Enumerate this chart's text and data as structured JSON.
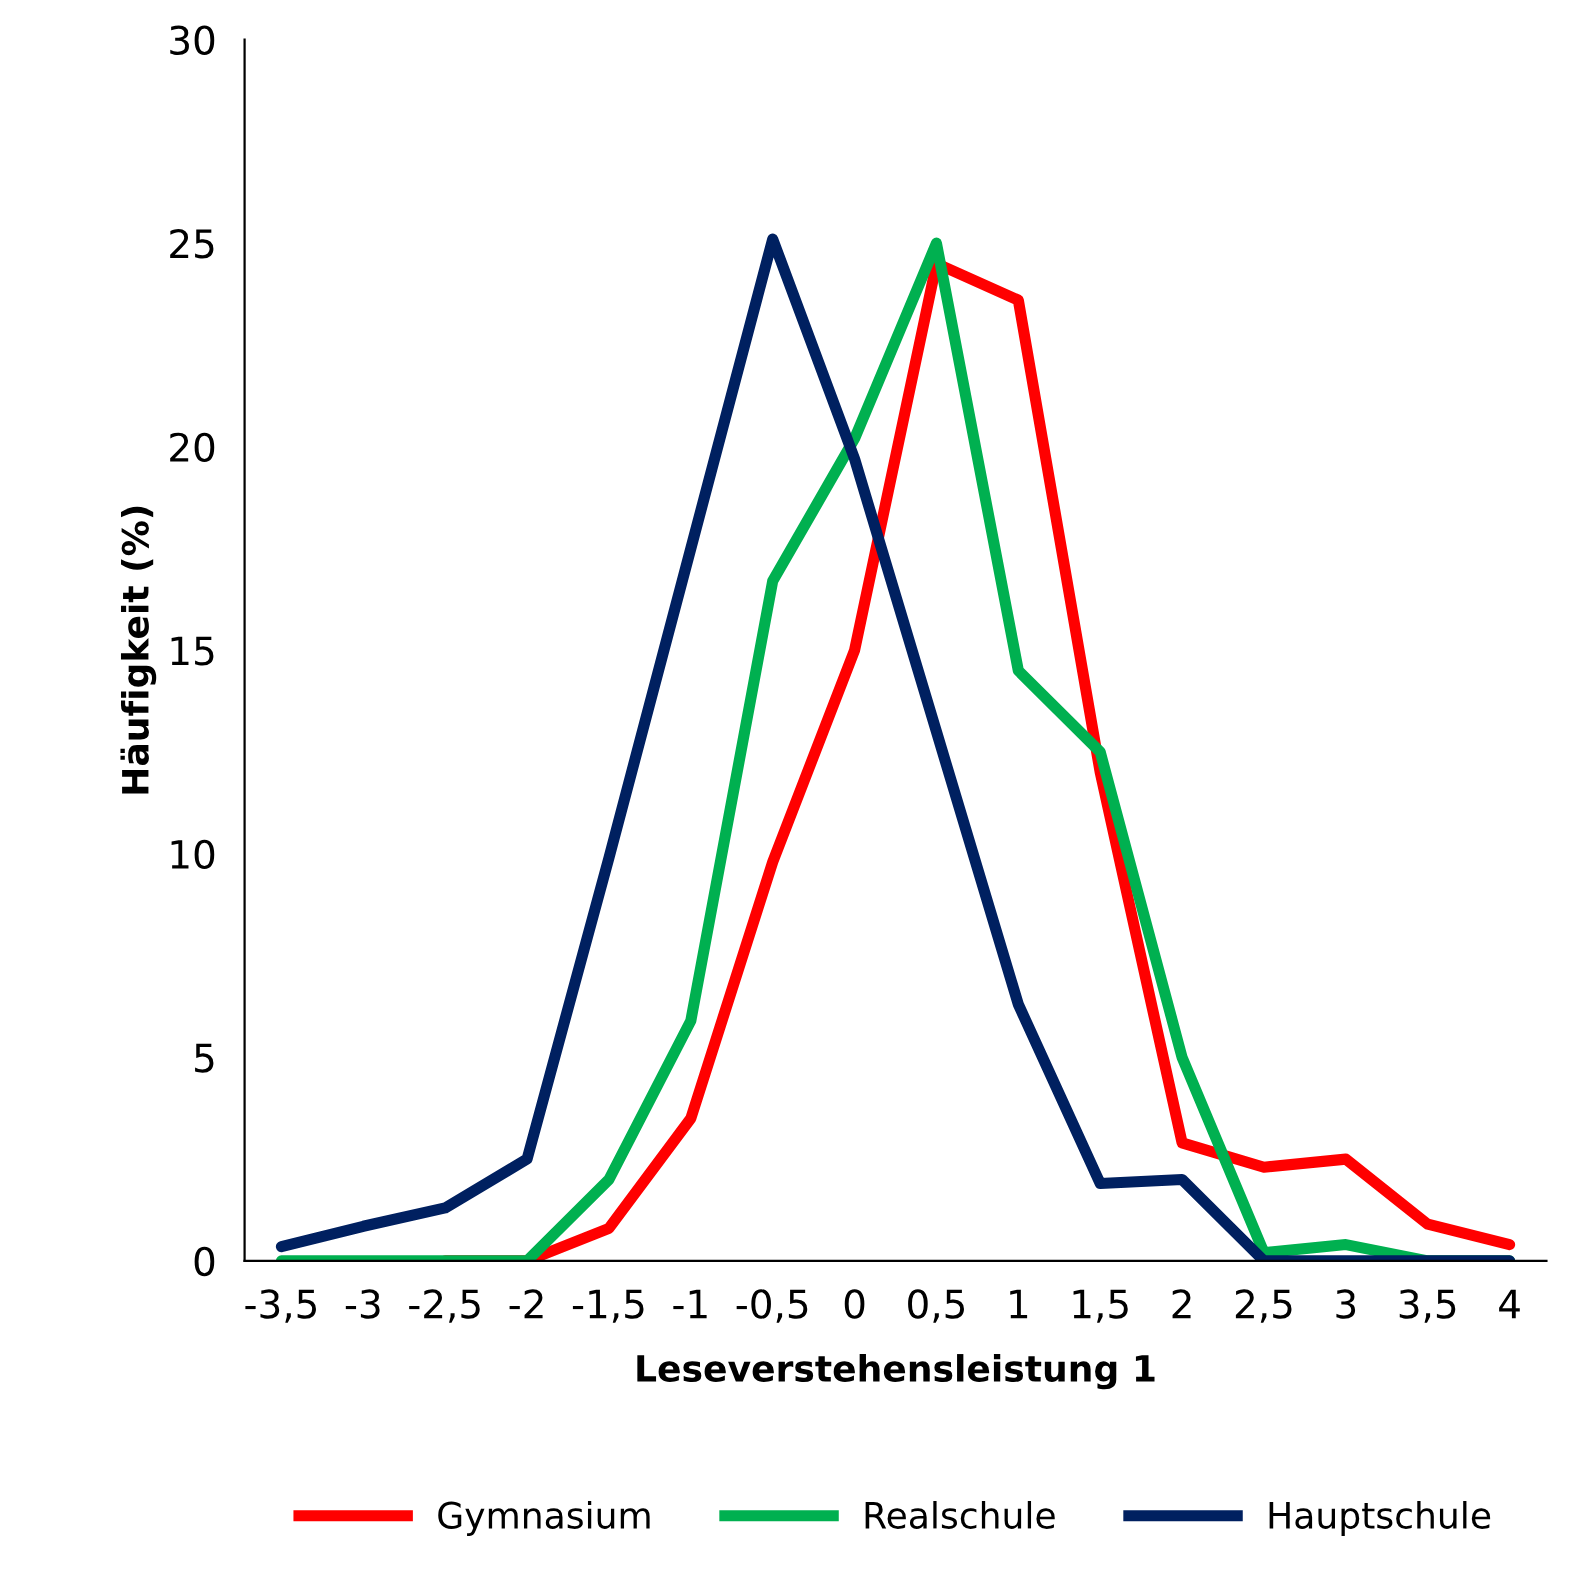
{
  "chart_data": {
    "type": "line",
    "xlabel": "Leseverstehensleistung 1",
    "ylabel": "Häufigkeit (%)",
    "categories": [
      "-3,5",
      "-3",
      "-2,5",
      "-2",
      "-1,5",
      "-1",
      "-0,5",
      "0",
      "0,5",
      "1",
      "1,5",
      "2",
      "2,5",
      "3",
      "3,5",
      "4"
    ],
    "series": [
      {
        "name": "Gymnasium",
        "color": "#ff0000",
        "values": [
          null,
          null,
          0,
          0,
          0.8,
          3.5,
          9.8,
          15,
          24.5,
          23.6,
          12,
          2.9,
          2.3,
          2.5,
          0.9,
          0.4
        ]
      },
      {
        "name": "Realschule",
        "color": "#00b050",
        "values": [
          0,
          0,
          0,
          0,
          2,
          5.9,
          16.7,
          20.2,
          25,
          14.5,
          12.5,
          5,
          0.2,
          0.4,
          0,
          0
        ]
      },
      {
        "name": "Hauptschule",
        "color": "#002060",
        "values": [
          0.35,
          0.85,
          1.3,
          2.5,
          9.9,
          17.5,
          25.1,
          19.7,
          13,
          6.3,
          1.9,
          2,
          0,
          0,
          0,
          0
        ]
      }
    ],
    "ylim": [
      0,
      30
    ],
    "yticks": [
      0,
      5,
      10,
      15,
      20,
      25,
      30
    ],
    "grid": false,
    "legend": "bottom",
    "marker": "none",
    "line_style": "solid"
  }
}
